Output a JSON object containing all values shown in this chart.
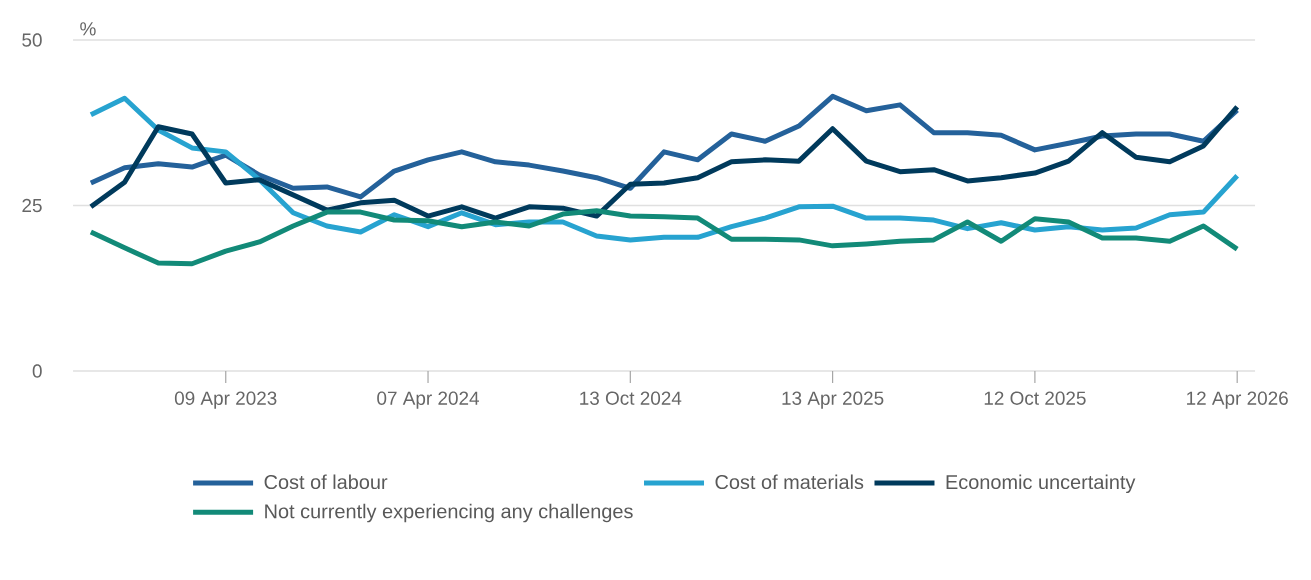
{
  "chart_data": {
    "type": "line",
    "ylabel": "%",
    "categories": [
      null,
      null,
      null,
      null,
      "09 Apr 2023",
      null,
      null,
      null,
      null,
      null,
      "07 Apr 2024",
      null,
      null,
      null,
      null,
      null,
      "13 Oct 2024",
      null,
      null,
      null,
      null,
      null,
      "13 Apr 2025",
      null,
      null,
      null,
      null,
      null,
      "12 Oct 2025",
      null,
      null,
      null,
      null,
      null,
      "12 Apr 2026"
    ],
    "series": [
      {
        "name": "Cost of labour",
        "color": "#24619a",
        "values": [
          28.4,
          30.7,
          31.3,
          30.8,
          32.6,
          29.6,
          27.6,
          27.8,
          26.3,
          30.2,
          31.9,
          33.1,
          31.6,
          31.1,
          30.2,
          29.2,
          27.6,
          33.1,
          31.9,
          35.8,
          34.7,
          37.0,
          41.5,
          39.3,
          40.2,
          36.0,
          36.0,
          35.6,
          33.4,
          34.4,
          35.5,
          35.8,
          35.8,
          34.7,
          39.4
        ]
      },
      {
        "name": "Cost of materials",
        "color": "#27a3d0",
        "values": [
          38.7,
          41.2,
          36.4,
          33.7,
          33.1,
          28.9,
          23.9,
          21.9,
          21.0,
          23.6,
          21.8,
          23.9,
          22.1,
          22.5,
          22.5,
          20.4,
          19.8,
          20.2,
          20.2,
          21.8,
          23.1,
          24.8,
          24.9,
          23.1,
          23.1,
          22.8,
          21.5,
          22.4,
          21.3,
          21.8,
          21.3,
          21.6,
          23.6,
          24.0,
          29.5
        ]
      },
      {
        "name": "Economic uncertainty",
        "color": "#003a5c",
        "values": [
          24.8,
          28.5,
          36.9,
          35.8,
          28.4,
          28.9,
          26.6,
          24.3,
          25.4,
          25.8,
          23.4,
          24.8,
          23.1,
          24.8,
          24.6,
          23.4,
          28.2,
          28.4,
          29.2,
          31.6,
          31.9,
          31.7,
          36.6,
          31.7,
          30.1,
          30.4,
          28.7,
          29.2,
          29.9,
          31.7,
          36.0,
          32.3,
          31.6,
          34.0,
          39.9
        ]
      },
      {
        "name": "Not currently experiencing any challenges",
        "color": "#128a78",
        "values": [
          21.0,
          18.6,
          16.3,
          16.2,
          18.1,
          19.5,
          21.9,
          24.0,
          24.0,
          22.8,
          22.7,
          21.8,
          22.5,
          21.9,
          23.7,
          24.2,
          23.4,
          23.3,
          23.1,
          19.9,
          19.9,
          19.8,
          18.9,
          19.2,
          19.6,
          19.8,
          22.5,
          19.6,
          23.0,
          22.5,
          20.1,
          20.1,
          19.6,
          21.9,
          18.4
        ]
      }
    ],
    "ylim": [
      0,
      50
    ],
    "yticks": [
      0,
      25,
      50
    ],
    "grid": "y",
    "legend": "bottom",
    "marker": "none",
    "line_style": "solid"
  }
}
